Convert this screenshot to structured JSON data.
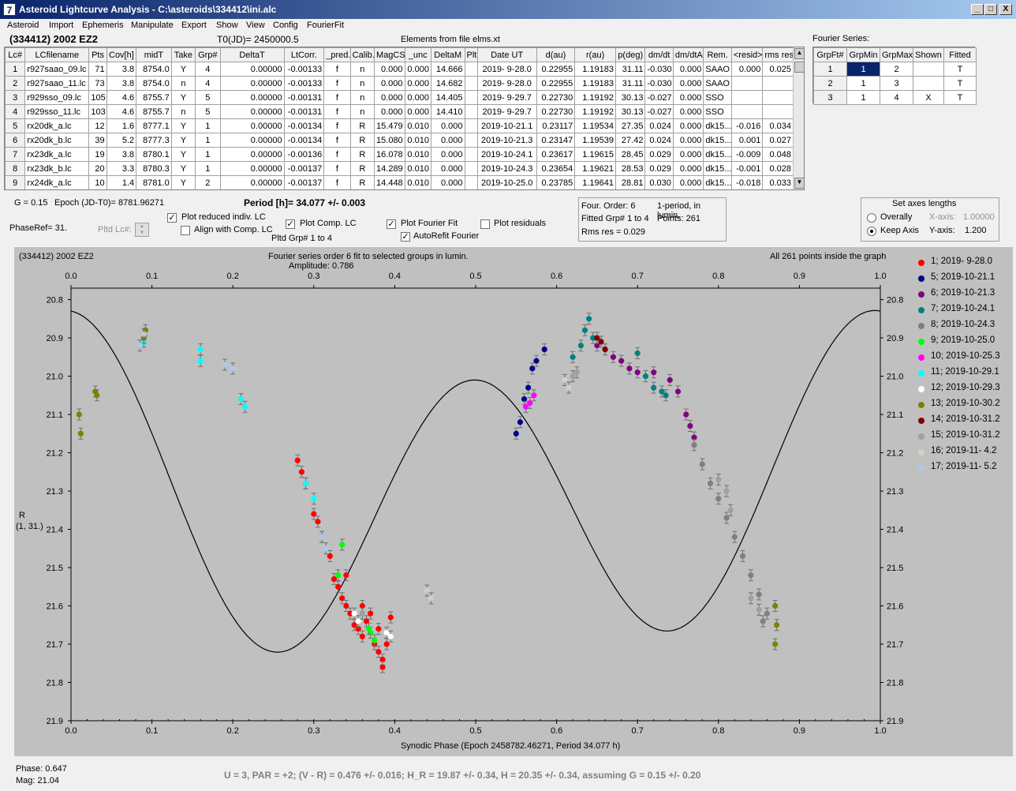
{
  "window": {
    "title": "Asteroid Lightcurve Analysis - C:\\asteroids\\334412\\ini.alc",
    "icon_glyph": "7",
    "min_glyph": "_",
    "max_glyph": "□",
    "close_glyph": "X"
  },
  "menu": [
    {
      "label": "Asteroid"
    },
    {
      "label": "Import"
    },
    {
      "label": "Ephemeris"
    },
    {
      "label": "Manipulate"
    },
    {
      "label": "Export"
    },
    {
      "label": "Show"
    },
    {
      "label": "View"
    },
    {
      "label": "Config"
    },
    {
      "label": "FourierFit"
    }
  ],
  "header": {
    "asteroid": "(334412) 2002 EZ2",
    "t0": "T0(JD)= 2450000.5",
    "elements": "Elements from file elms.xt"
  },
  "lc_table": {
    "columns": [
      "Lc#",
      "LCfilename",
      "Pts",
      "Cov[h]",
      "midT",
      "Take",
      "Grp#",
      "DeltaT",
      "LtCorr.",
      "_pred.",
      "Calib.",
      "MagCS",
      "_unc",
      "DeltaM",
      "Plt",
      "Date UT",
      "d(au)",
      "r(au)",
      "p(deg)",
      "dm/dt",
      "dm/dtA",
      "Rem.",
      "<resid>",
      "rms res"
    ],
    "rows": [
      [
        "1",
        "r927saao_09.lc",
        "71",
        "3.8",
        "8754.0",
        "Y",
        "4",
        "0.00000",
        "-0.00133",
        "f",
        "n",
        "0.000",
        "0.000",
        "14.666",
        "",
        "2019- 9-28.0",
        "0.22955",
        "1.19183",
        "31.11",
        "-0.030",
        "0.000",
        "SAAO",
        "0.000",
        "0.025"
      ],
      [
        "2",
        "r927saao_11.lc",
        "73",
        "3.8",
        "8754.0",
        "n",
        "4",
        "0.00000",
        "-0.00133",
        "f",
        "n",
        "0.000",
        "0.000",
        "14.682",
        "",
        "2019- 9-28.0",
        "0.22955",
        "1.19183",
        "31.11",
        "-0.030",
        "0.000",
        "SAAO",
        "",
        ""
      ],
      [
        "3",
        "r929sso_09.lc",
        "105",
        "4.6",
        "8755.7",
        "Y",
        "5",
        "0.00000",
        "-0.00131",
        "f",
        "n",
        "0.000",
        "0.000",
        "14.405",
        "",
        "2019- 9-29.7",
        "0.22730",
        "1.19192",
        "30.13",
        "-0.027",
        "0.000",
        "SSO",
        "",
        ""
      ],
      [
        "4",
        "r929sso_11.lc",
        "103",
        "4.6",
        "8755.7",
        "n",
        "5",
        "0.00000",
        "-0.00131",
        "f",
        "n",
        "0.000",
        "0.000",
        "14.410",
        "",
        "2019- 9-29.7",
        "0.22730",
        "1.19192",
        "30.13",
        "-0.027",
        "0.000",
        "SSO",
        "",
        ""
      ],
      [
        "5",
        "rx20dk_a.lc",
        "12",
        "1.6",
        "8777.1",
        "Y",
        "1",
        "0.00000",
        "-0.00134",
        "f",
        "R",
        "15.479",
        "0.010",
        "0.000",
        "",
        "2019-10-21.1",
        "0.23117",
        "1.19534",
        "27.35",
        "0.024",
        "0.000",
        "dk15...",
        "-0.016",
        "0.034"
      ],
      [
        "6",
        "rx20dk_b.lc",
        "39",
        "5.2",
        "8777.3",
        "Y",
        "1",
        "0.00000",
        "-0.00134",
        "f",
        "R",
        "15.080",
        "0.010",
        "0.000",
        "",
        "2019-10-21.3",
        "0.23147",
        "1.19539",
        "27.42",
        "0.024",
        "0.000",
        "dk15...",
        "0.001",
        "0.027"
      ],
      [
        "7",
        "rx23dk_a.lc",
        "19",
        "3.8",
        "8780.1",
        "Y",
        "1",
        "0.00000",
        "-0.00136",
        "f",
        "R",
        "16.078",
        "0.010",
        "0.000",
        "",
        "2019-10-24.1",
        "0.23617",
        "1.19615",
        "28.45",
        "0.029",
        "0.000",
        "dk15...",
        "-0.009",
        "0.048"
      ],
      [
        "8",
        "rx23dk_b.lc",
        "20",
        "3.3",
        "8780.3",
        "Y",
        "1",
        "0.00000",
        "-0.00137",
        "f",
        "R",
        "14.289",
        "0.010",
        "0.000",
        "",
        "2019-10-24.3",
        "0.23654",
        "1.19621",
        "28.53",
        "0.029",
        "0.000",
        "dk15...",
        "-0.001",
        "0.028"
      ],
      [
        "9",
        "rx24dk_a.lc",
        "10",
        "1.4",
        "8781.0",
        "Y",
        "2",
        "0.00000",
        "-0.00137",
        "f",
        "R",
        "14.448",
        "0.010",
        "0.000",
        "",
        "2019-10-25.0",
        "0.23785",
        "1.19641",
        "28.81",
        "0.030",
        "0.000",
        "dk15...",
        "-0.018",
        "0.033"
      ]
    ]
  },
  "fourier_series": {
    "title": "Fourier Series:",
    "columns": [
      "GrpFt#",
      "GrpMin",
      "GrpMax",
      "Shown",
      "Fitted"
    ],
    "rows": [
      [
        "1",
        "1",
        "2",
        "",
        "T"
      ],
      [
        "2",
        "1",
        "3",
        "",
        "T"
      ],
      [
        "3",
        "1",
        "4",
        "X",
        "T"
      ]
    ]
  },
  "params": {
    "g": "G = 0.15",
    "epoch": "Epoch (JD-T0)= 8781.96271",
    "period": "Period [h]= 34.077 +/- 0.003",
    "phaseref": "PhaseRef= 31.",
    "pltd_lc": "Pltd Lc#:",
    "plot_reduced": "Plot reduced indiv. LC",
    "align_comp": "Align with Comp. LC",
    "plot_comp": "Plot Comp. LC",
    "pltd_grp": "Pltd Grp#  1   to   4",
    "plot_fourier": "Plot Fourier Fit",
    "auto_refit": "AutoRefit Fourier",
    "plot_residuals": "Plot residuals",
    "check_glyph": "✓",
    "spin_up": "▲",
    "spin_down": "▼"
  },
  "fit_info": {
    "order": "Four. Order:  6",
    "period_mode": "1-period, in lumin.",
    "fitted": "Fitted Grp# 1 to 4",
    "points": "Points: 261",
    "rms": "Rms res     = 0.029"
  },
  "axes_lengths": {
    "title": "Set axes lengths",
    "overally": "Overally",
    "keep_axis": "Keep Axis",
    "x_label": "X-axis:",
    "x_value": "1.00000",
    "y_label": "Y-axis:",
    "y_value": "1.200"
  },
  "plot": {
    "name": "(334412) 2002 EZ2",
    "subtitle": "Fourier series order 6 fit to selected groups in lumin.",
    "amplitude": "Amplitude: 0.786",
    "inside_note": "All 261 points inside the graph",
    "ylabel_line1": "R",
    "ylabel_line2": "(1, 31.)",
    "xlabel": "Synodic Phase (Epoch 2458782.46271, Period 34.077 h)"
  },
  "chart_data": {
    "type": "scatter",
    "x_ticks": [
      "0.0",
      "0.1",
      "0.2",
      "0.3",
      "0.4",
      "0.5",
      "0.6",
      "0.7",
      "0.8",
      "0.9",
      "1.0"
    ],
    "y_ticks": [
      "20.8",
      "20.9",
      "21.0",
      "21.1",
      "21.2",
      "21.3",
      "21.4",
      "21.5",
      "21.6",
      "21.7",
      "21.8",
      "21.9"
    ],
    "xlim": [
      0.0,
      1.0
    ],
    "ylim": [
      21.9,
      20.77
    ],
    "y_inverted": true,
    "fourier_curve": {
      "mean": 21.305,
      "a1": -0.09,
      "b1": 0.03,
      "a2": -0.385,
      "b2": 0.02
    },
    "series": [
      {
        "name": "1; 2019- 9-28.0",
        "color": "#ff0000",
        "points": [
          [
            0.28,
            21.22
          ],
          [
            0.285,
            21.25
          ],
          [
            0.29,
            21.28
          ],
          [
            0.3,
            21.36
          ],
          [
            0.305,
            21.38
          ],
          [
            0.31,
            21.42
          ],
          [
            0.32,
            21.47
          ],
          [
            0.325,
            21.53
          ],
          [
            0.33,
            21.55
          ],
          [
            0.335,
            21.58
          ],
          [
            0.34,
            21.6
          ],
          [
            0.345,
            21.62
          ],
          [
            0.35,
            21.65
          ],
          [
            0.355,
            21.66
          ],
          [
            0.36,
            21.68
          ],
          [
            0.365,
            21.64
          ],
          [
            0.37,
            21.62
          ],
          [
            0.375,
            21.7
          ],
          [
            0.38,
            21.72
          ],
          [
            0.385,
            21.74
          ],
          [
            0.39,
            21.7
          ],
          [
            0.395,
            21.63
          ],
          [
            0.385,
            21.76
          ],
          [
            0.38,
            21.66
          ],
          [
            0.36,
            21.6
          ],
          [
            0.34,
            21.52
          ]
        ]
      },
      {
        "name": "5; 2019-10-21.1",
        "color": "#00008b",
        "points": [
          [
            0.55,
            21.15
          ],
          [
            0.555,
            21.12
          ],
          [
            0.56,
            21.06
          ],
          [
            0.565,
            21.03
          ],
          [
            0.57,
            20.98
          ],
          [
            0.575,
            20.96
          ],
          [
            0.585,
            20.93
          ]
        ]
      },
      {
        "name": "6; 2019-10-21.3",
        "color": "#800080",
        "points": [
          [
            0.65,
            20.92
          ],
          [
            0.66,
            20.93
          ],
          [
            0.67,
            20.95
          ],
          [
            0.68,
            20.96
          ],
          [
            0.69,
            20.98
          ],
          [
            0.7,
            20.99
          ],
          [
            0.72,
            20.99
          ],
          [
            0.74,
            21.01
          ],
          [
            0.75,
            21.04
          ],
          [
            0.76,
            21.1
          ],
          [
            0.765,
            21.13
          ],
          [
            0.77,
            21.16
          ]
        ]
      },
      {
        "name": "7; 2019-10-24.1",
        "color": "#008080",
        "points": [
          [
            0.62,
            20.95
          ],
          [
            0.63,
            20.92
          ],
          [
            0.635,
            20.88
          ],
          [
            0.64,
            20.85
          ],
          [
            0.645,
            20.9
          ],
          [
            0.7,
            20.94
          ],
          [
            0.71,
            21.0
          ],
          [
            0.72,
            21.03
          ],
          [
            0.73,
            21.04
          ],
          [
            0.735,
            21.05
          ]
        ]
      },
      {
        "name": "8; 2019-10-24.3",
        "color": "#808080",
        "points": [
          [
            0.77,
            21.18
          ],
          [
            0.78,
            21.23
          ],
          [
            0.79,
            21.28
          ],
          [
            0.8,
            21.32
          ],
          [
            0.81,
            21.37
          ],
          [
            0.82,
            21.42
          ],
          [
            0.83,
            21.47
          ],
          [
            0.84,
            21.52
          ],
          [
            0.85,
            21.57
          ],
          [
            0.86,
            21.62
          ],
          [
            0.855,
            21.64
          ]
        ]
      },
      {
        "name": "9; 2019-10-25.0",
        "color": "#00ff00",
        "points": [
          [
            0.33,
            21.52
          ],
          [
            0.335,
            21.44
          ],
          [
            0.37,
            21.67
          ],
          [
            0.375,
            21.69
          ],
          [
            0.368,
            21.66
          ]
        ]
      },
      {
        "name": "10; 2019-10-25.3",
        "color": "#ff00ff",
        "points": [
          [
            0.562,
            21.08
          ],
          [
            0.567,
            21.07
          ],
          [
            0.572,
            21.05
          ]
        ]
      },
      {
        "name": "11; 2019-10-29.1",
        "color": "#00ffff",
        "points": [
          [
            0.09,
            20.91
          ],
          [
            0.16,
            20.93
          ],
          [
            0.16,
            20.96
          ],
          [
            0.21,
            21.06
          ],
          [
            0.215,
            21.08
          ],
          [
            0.29,
            21.28
          ],
          [
            0.3,
            21.32
          ]
        ]
      },
      {
        "name": "12; 2019-10-29.3",
        "color": "#ffffff",
        "points": [
          [
            0.35,
            21.62
          ],
          [
            0.355,
            21.64
          ],
          [
            0.39,
            21.67
          ],
          [
            0.395,
            21.68
          ]
        ]
      },
      {
        "name": "13; 2019-10-30.2",
        "color": "#808000",
        "points": [
          [
            0.01,
            21.1
          ],
          [
            0.012,
            21.15
          ],
          [
            0.03,
            21.04
          ],
          [
            0.032,
            21.05
          ],
          [
            0.09,
            20.9
          ],
          [
            0.092,
            20.88
          ],
          [
            0.87,
            21.6
          ],
          [
            0.872,
            21.65
          ],
          [
            0.87,
            21.7
          ]
        ]
      },
      {
        "name": "14; 2019-10-31.2",
        "color": "#800000",
        "points": [
          [
            0.65,
            20.9
          ],
          [
            0.655,
            20.91
          ],
          [
            0.66,
            20.93
          ]
        ]
      },
      {
        "name": "15; 2019-10-31.2",
        "color": "#a0a0a0",
        "points": [
          [
            0.62,
            21.0
          ],
          [
            0.625,
            20.99
          ],
          [
            0.8,
            21.27
          ],
          [
            0.81,
            21.3
          ],
          [
            0.815,
            21.35
          ],
          [
            0.84,
            21.58
          ],
          [
            0.85,
            21.61
          ],
          [
            0.36,
            21.62
          ]
        ]
      },
      {
        "name": "16; 2019-11- 4.2",
        "color": "#c8d8c0",
        "points": [
          [
            0.44,
            21.56
          ],
          [
            0.445,
            21.58
          ],
          [
            0.61,
            21.01
          ],
          [
            0.615,
            21.03
          ]
        ]
      },
      {
        "name": "17; 2019-11- 5.2",
        "color": "#b0c8e8",
        "points": [
          [
            0.085,
            20.92
          ],
          [
            0.09,
            20.89
          ],
          [
            0.19,
            20.97
          ],
          [
            0.2,
            20.98
          ],
          [
            0.31,
            21.42
          ],
          [
            0.315,
            21.45
          ]
        ]
      }
    ]
  },
  "status": {
    "phase": "Phase:  0.647",
    "mag": "Mag:    21.04",
    "summary": "U = 3, PAR = +2; (V - R) = 0.476 +/- 0.016; H_R = 19.87 +/- 0.34, H = 20.35 +/- 0.34, assuming G = 0.15 +/- 0.20"
  }
}
